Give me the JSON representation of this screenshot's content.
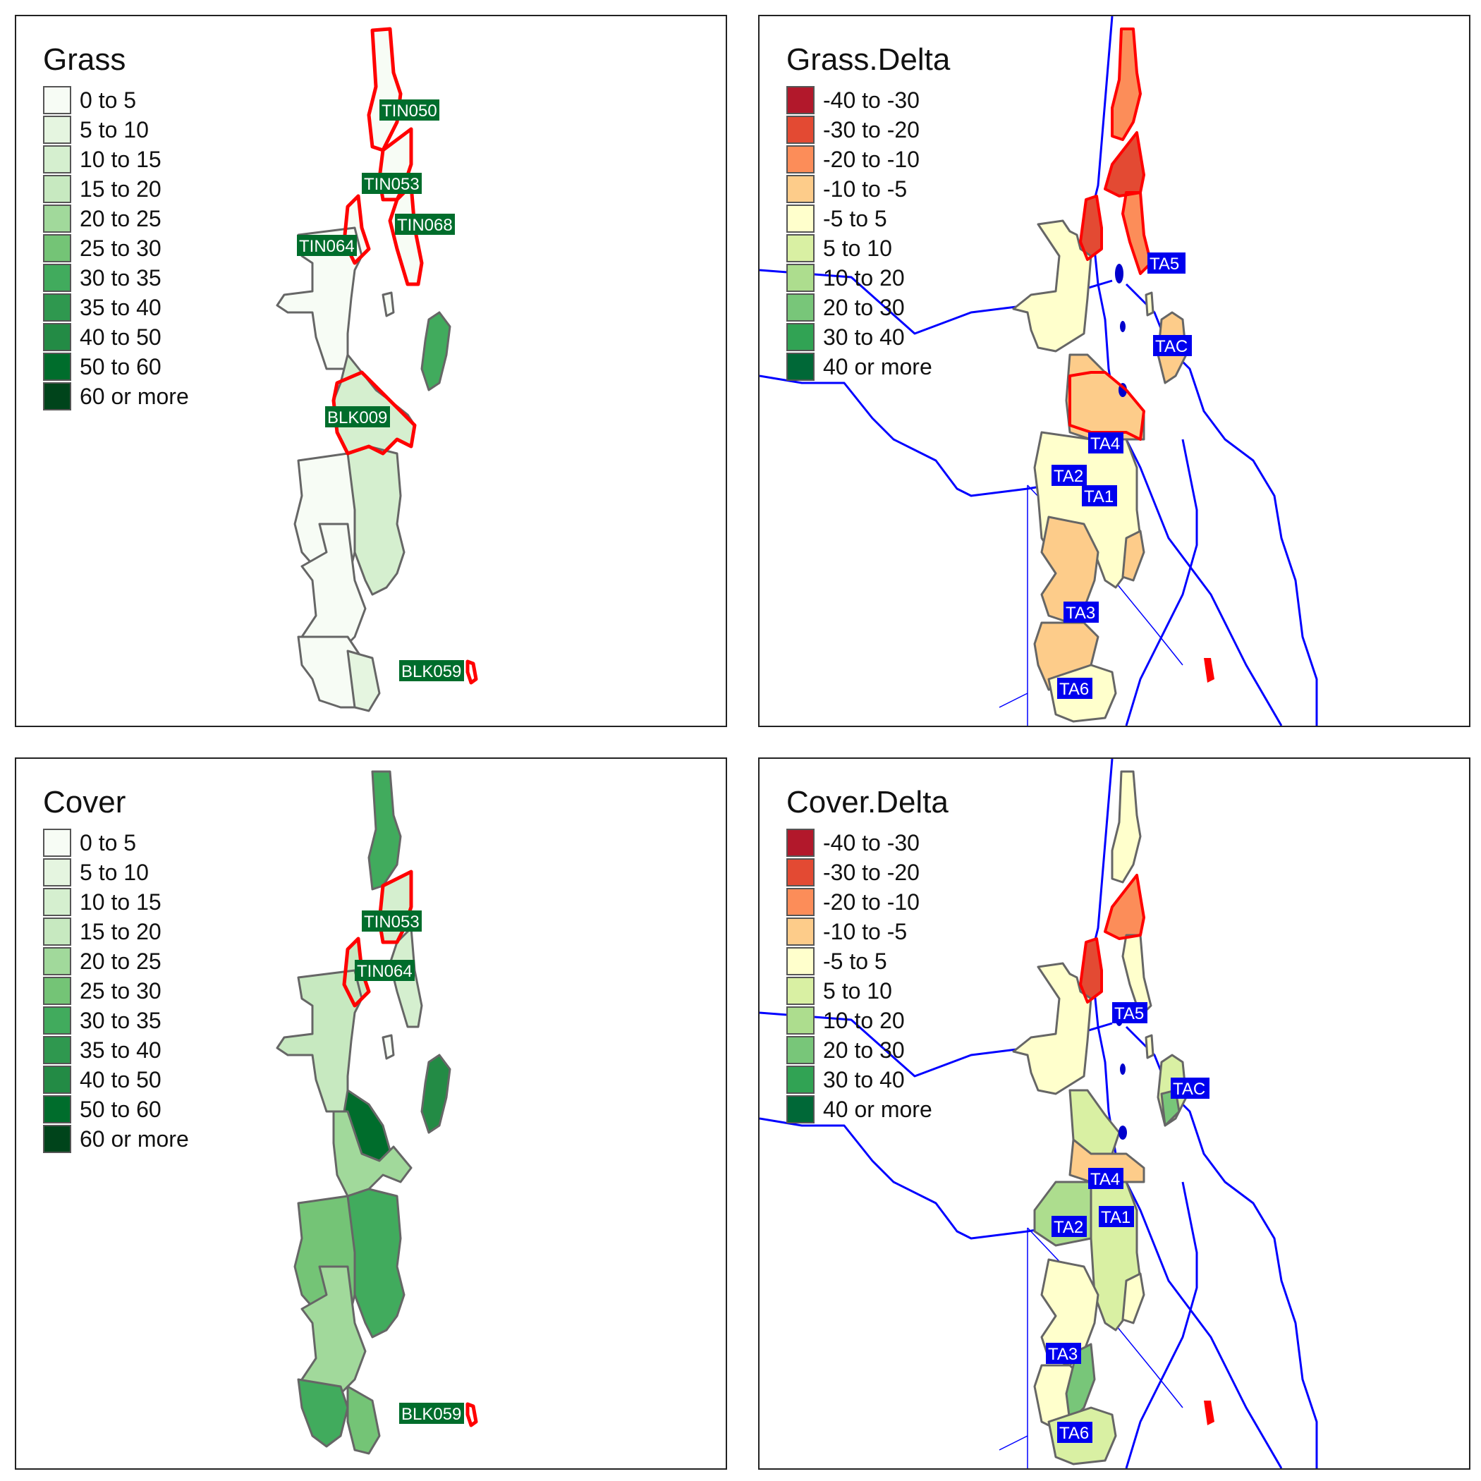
{
  "colors": {
    "grass_scale": [
      "#f7fcf5",
      "#e5f5e0",
      "#d5efcf",
      "#c7e9c0",
      "#a1d99b",
      "#74c476",
      "#41ab5d",
      "#2f984f",
      "#238b45",
      "#006d2c",
      "#00441b"
    ],
    "delta_scale": [
      "#b2182b",
      "#e34a33",
      "#fc8d59",
      "#fdcc8a",
      "#ffffcc",
      "#d9f0a3",
      "#addd8e",
      "#78c679",
      "#31a354",
      "#006837"
    ],
    "highlight_outline": "#ff0000",
    "boundary_outline": "#666666",
    "river_line": "#0000ff",
    "label_green_bg": "#006d2c",
    "label_blue_bg": "#0000ee"
  },
  "panels": [
    {
      "title": "Grass",
      "legend_type": "grass",
      "legend": [
        "0 to 5",
        "5 to 10",
        "10 to 15",
        "15 to 20",
        "20 to 25",
        "25 to 30",
        "30 to 35",
        "35 to 40",
        "40 to 50",
        "50 to 60",
        "60 or more"
      ],
      "labels": [
        "TIN050",
        "TIN053",
        "TIN068",
        "TIN064",
        "BLK009",
        "BLK059"
      ]
    },
    {
      "title": "Grass.Delta",
      "legend_type": "delta",
      "legend": [
        "-40 to -30",
        "-30 to -20",
        "-20 to -10",
        "-10 to -5",
        "-5 to 5",
        "5 to 10",
        "10 to 20",
        "20 to 30",
        "30 to 40",
        "40 or more"
      ],
      "labels": [
        "TA5",
        "TAC",
        "TA4",
        "TA2",
        "TA1",
        "TA3",
        "TA6"
      ]
    },
    {
      "title": "Cover",
      "legend_type": "grass",
      "legend": [
        "0 to 5",
        "5 to 10",
        "10 to 15",
        "15 to 20",
        "20 to 25",
        "25 to 30",
        "30 to 35",
        "35 to 40",
        "40 to 50",
        "50 to 60",
        "60 or more"
      ],
      "labels": [
        "TIN053",
        "TIN064",
        "BLK059"
      ]
    },
    {
      "title": "Cover.Delta",
      "legend_type": "delta",
      "legend": [
        "-40 to -30",
        "-30 to -20",
        "-20 to -10",
        "-10 to -5",
        "-5 to 5",
        "5 to 10",
        "10 to 20",
        "20 to 30",
        "30 to 40",
        "40 or more"
      ],
      "labels": [
        "TA5",
        "TAC",
        "TA4",
        "TA1",
        "TA2",
        "TA3",
        "TA6"
      ]
    }
  ]
}
